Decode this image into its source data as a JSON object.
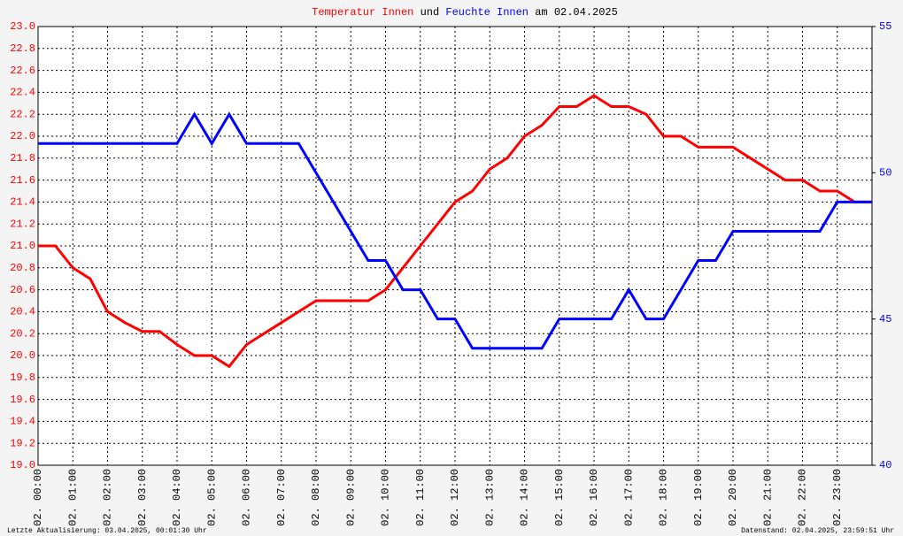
{
  "chart_data": {
    "type": "line",
    "title_words": [
      "und",
      "am 02.04.2025"
    ],
    "footer_left": "Letzte Aktualisierung: 03.04.2025, 00:01:30 Uhr",
    "footer_right": "Datenstand: 02.04.2025, 23:59:51 Uhr",
    "x": [
      0,
      0.5,
      1,
      1.5,
      2,
      2.5,
      3,
      3.5,
      4,
      4.5,
      5,
      5.5,
      6,
      6.5,
      7,
      7.5,
      8,
      8.5,
      9,
      9.5,
      10,
      10.5,
      11,
      11.5,
      12,
      12.5,
      13,
      13.5,
      14,
      14.5,
      15,
      15.5,
      16,
      16.5,
      17,
      17.5,
      18,
      18.5,
      19,
      19.5,
      20,
      20.5,
      21,
      21.5,
      22,
      22.5,
      23,
      23.5,
      24
    ],
    "series": [
      {
        "name": "Temperatur Innen",
        "color": "#ff0000",
        "axis": "y",
        "values": [
          21.0,
          21.0,
          20.8,
          20.7,
          20.4,
          20.3,
          20.22,
          20.22,
          20.1,
          20.0,
          20.0,
          19.9,
          20.1,
          20.2,
          20.3,
          20.4,
          20.5,
          20.5,
          20.5,
          20.5,
          20.6,
          20.8,
          21.0,
          21.2,
          21.4,
          21.5,
          21.7,
          21.8,
          22.0,
          22.1,
          22.27,
          22.27,
          22.37,
          22.27,
          22.27,
          22.2,
          22.0,
          22.0,
          21.9,
          21.9,
          21.9,
          21.8,
          21.7,
          21.6,
          21.6,
          21.5,
          21.5,
          21.4,
          21.4
        ]
      },
      {
        "name": "Feuchte Innen",
        "color": "#0000ff",
        "axis": "y2",
        "values": [
          51,
          51,
          51,
          51,
          51,
          51,
          51,
          51,
          51,
          52,
          51,
          52,
          51,
          51,
          51,
          51,
          50,
          49,
          48,
          47,
          47,
          46,
          46,
          45,
          45,
          44,
          44,
          44,
          44,
          44,
          45,
          45,
          45,
          45,
          46,
          45,
          45,
          46,
          47,
          47,
          48,
          48,
          48,
          48,
          48,
          48,
          49,
          49,
          49
        ]
      }
    ],
    "xlim": [
      0,
      24
    ],
    "xticks": [
      {
        "value": 0,
        "label": "02. 00:00"
      },
      {
        "value": 1,
        "label": "02. 01:00"
      },
      {
        "value": 2,
        "label": "02. 02:00"
      },
      {
        "value": 3,
        "label": "02. 03:00"
      },
      {
        "value": 4,
        "label": "02. 04:00"
      },
      {
        "value": 5,
        "label": "02. 05:00"
      },
      {
        "value": 6,
        "label": "02. 06:00"
      },
      {
        "value": 7,
        "label": "02. 07:00"
      },
      {
        "value": 8,
        "label": "02. 08:00"
      },
      {
        "value": 9,
        "label": "02. 09:00"
      },
      {
        "value": 10,
        "label": "02. 10:00"
      },
      {
        "value": 11,
        "label": "02. 11:00"
      },
      {
        "value": 12,
        "label": "02. 12:00"
      },
      {
        "value": 13,
        "label": "02. 13:00"
      },
      {
        "value": 14,
        "label": "02. 14:00"
      },
      {
        "value": 15,
        "label": "02. 15:00"
      },
      {
        "value": 16,
        "label": "02. 16:00"
      },
      {
        "value": 17,
        "label": "02. 17:00"
      },
      {
        "value": 18,
        "label": "02. 18:00"
      },
      {
        "value": 19,
        "label": "02. 19:00"
      },
      {
        "value": 20,
        "label": "02. 20:00"
      },
      {
        "value": 21,
        "label": "02. 21:00"
      },
      {
        "value": 22,
        "label": "02. 22:00"
      },
      {
        "value": 23,
        "label": "02. 23:00"
      }
    ],
    "ylim": [
      19.0,
      23.0
    ],
    "yticks": [
      {
        "value": 19.0,
        "label": "19.0"
      },
      {
        "value": 19.2,
        "label": "19.2"
      },
      {
        "value": 19.4,
        "label": "19.4"
      },
      {
        "value": 19.6,
        "label": "19.6"
      },
      {
        "value": 19.8,
        "label": "19.8"
      },
      {
        "value": 20.0,
        "label": "20.0"
      },
      {
        "value": 20.2,
        "label": "20.2"
      },
      {
        "value": 20.4,
        "label": "20.4"
      },
      {
        "value": 20.6,
        "label": "20.6"
      },
      {
        "value": 20.8,
        "label": "20.8"
      },
      {
        "value": 21.0,
        "label": "21.0"
      },
      {
        "value": 21.2,
        "label": "21.2"
      },
      {
        "value": 21.4,
        "label": "21.4"
      },
      {
        "value": 21.6,
        "label": "21.6"
      },
      {
        "value": 21.8,
        "label": "21.8"
      },
      {
        "value": 22.0,
        "label": "22.0"
      },
      {
        "value": 22.2,
        "label": "22.2"
      },
      {
        "value": 22.4,
        "label": "22.4"
      },
      {
        "value": 22.6,
        "label": "22.6"
      },
      {
        "value": 22.8,
        "label": "22.8"
      },
      {
        "value": 23.0,
        "label": "23.0"
      }
    ],
    "y2lim": [
      40,
      55
    ],
    "y2ticks": [
      40,
      45,
      50,
      55
    ],
    "grid": true
  }
}
